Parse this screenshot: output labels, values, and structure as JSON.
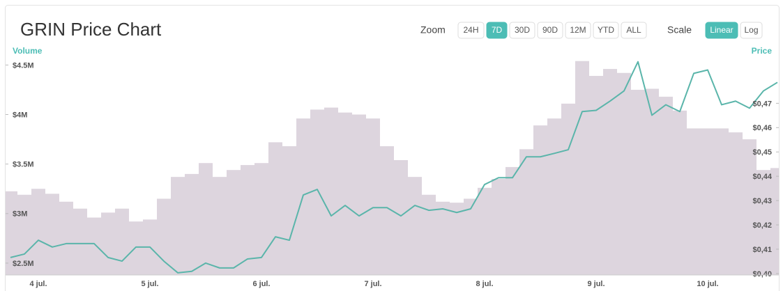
{
  "chart_data": {
    "type": "volume-price",
    "title": "GRIN Price Chart",
    "categories": [
      null,
      null,
      "4 jul.",
      null,
      null,
      null,
      null,
      null,
      null,
      null,
      "5 jul.",
      null,
      null,
      null,
      null,
      null,
      null,
      null,
      "6 jul.",
      null,
      null,
      null,
      null,
      null,
      null,
      null,
      "7 jul.",
      null,
      null,
      null,
      null,
      null,
      null,
      null,
      "8 jul.",
      null,
      null,
      null,
      null,
      null,
      null,
      null,
      "9 jul.",
      null,
      null,
      null,
      null,
      null,
      null,
      null,
      "10 jul.",
      null,
      null,
      null,
      null,
      null
    ],
    "series": [
      {
        "name": "Volume",
        "color": "#ddd5de",
        "values": [
          3225000,
          3190000,
          3250000,
          3200000,
          3120000,
          3050000,
          2960000,
          3010000,
          3050000,
          2920000,
          2940000,
          3150000,
          3370000,
          3400000,
          3510000,
          3370000,
          3440000,
          3490000,
          3510000,
          3720000,
          3680000,
          3960000,
          4050000,
          4070000,
          4020000,
          4000000,
          3960000,
          3680000,
          3540000,
          3370000,
          3190000,
          3120000,
          3110000,
          3150000,
          3260000,
          3350000,
          3470000,
          3650000,
          3890000,
          3960000,
          4110000,
          4540000,
          4390000,
          4460000,
          4420000,
          4250000,
          4260000,
          4180000,
          4040000,
          3860000,
          3860000,
          3860000,
          3820000,
          3750000,
          3440000,
          3460000
        ]
      },
      {
        "name": "Price",
        "color": "#5ab5aa",
        "axis": "y2",
        "values": [
          0.4066,
          0.408,
          0.4137,
          0.4109,
          0.4123,
          0.4123,
          0.4123,
          0.4066,
          0.4051,
          0.4109,
          0.4109,
          0.4051,
          0.4003,
          0.4009,
          0.4043,
          0.4023,
          0.4023,
          0.406,
          0.4066,
          0.4151,
          0.4137,
          0.4323,
          0.4346,
          0.4237,
          0.428,
          0.4237,
          0.4271,
          0.4271,
          0.4237,
          0.428,
          0.426,
          0.4266,
          0.4251,
          0.4266,
          0.4366,
          0.4394,
          0.4394,
          0.448,
          0.448,
          0.4494,
          0.4509,
          0.4666,
          0.4671,
          0.4709,
          0.4751,
          0.4871,
          0.4651,
          0.4694,
          0.4666,
          0.4823,
          0.4837,
          0.4694,
          0.4709,
          0.468,
          0.4751,
          0.4786
        ]
      }
    ],
    "ylim": [
      2380000,
      4580000
    ],
    "yticks": [
      {
        "value": 2500000,
        "label": "$2.5M"
      },
      {
        "value": 3000000,
        "label": "$3M"
      },
      {
        "value": 3500000,
        "label": "$3.5M"
      },
      {
        "value": 4000000,
        "label": "$4M"
      },
      {
        "value": 4500000,
        "label": "$4.5M"
      }
    ],
    "y2lim": [
      0.3994,
      0.489
    ],
    "y2ticks": [
      {
        "value": 0.4,
        "label": "$0,40"
      },
      {
        "value": 0.41,
        "label": "$0,41"
      },
      {
        "value": 0.42,
        "label": "$0,42"
      },
      {
        "value": 0.43,
        "label": "$0,43"
      },
      {
        "value": 0.44,
        "label": "$0,44"
      },
      {
        "value": 0.45,
        "label": "$0,45"
      },
      {
        "value": 0.46,
        "label": "$0,46"
      },
      {
        "value": 0.47,
        "label": "$0,47"
      }
    ]
  },
  "controls": {
    "zoom_label": "Zoom",
    "zoom": [
      "24H",
      "7D",
      "30D",
      "90D",
      "12M",
      "YTD",
      "ALL"
    ],
    "zoom_selected": "7D",
    "scale_label": "Scale",
    "scale": [
      "Linear",
      "Log"
    ],
    "scale_selected": "Linear"
  }
}
